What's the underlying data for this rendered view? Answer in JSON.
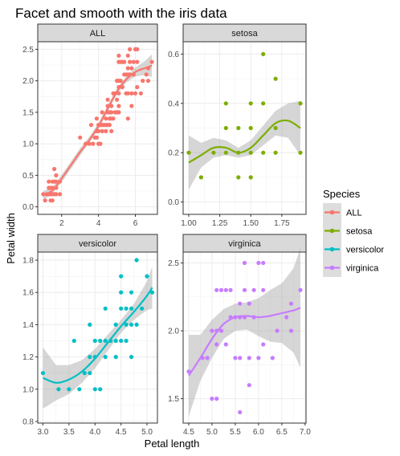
{
  "chart_data": {
    "type": "scatter",
    "title": "Facet and smooth with the iris data",
    "xlabel": "Petal length",
    "ylabel": "Petal width",
    "legend": {
      "title": "Species",
      "placement": "right",
      "entries": [
        {
          "name": "ALL",
          "color": "#F8766D"
        },
        {
          "name": "setosa",
          "color": "#7CAE00"
        },
        {
          "name": "versicolor",
          "color": "#00BFC4"
        },
        {
          "name": "virginica",
          "color": "#C77CFF"
        }
      ]
    },
    "grid": true,
    "smooth": "loess with confidence band",
    "facets": [
      {
        "label": "ALL",
        "color": "#F8766D",
        "xlim": [
          0.7,
          7.2
        ],
        "ylim": [
          -0.12,
          2.62
        ],
        "xticks": [
          2,
          4,
          6
        ],
        "yticks": [
          0.0,
          0.5,
          1.0,
          1.5,
          2.0,
          2.5
        ],
        "points": [
          [
            1.0,
            0.2
          ],
          [
            1.1,
            0.1
          ],
          [
            1.2,
            0.2
          ],
          [
            1.3,
            0.2
          ],
          [
            1.3,
            0.3
          ],
          [
            1.3,
            0.4
          ],
          [
            1.4,
            0.1
          ],
          [
            1.4,
            0.2
          ],
          [
            1.4,
            0.3
          ],
          [
            1.5,
            0.1
          ],
          [
            1.5,
            0.2
          ],
          [
            1.5,
            0.3
          ],
          [
            1.5,
            0.4
          ],
          [
            1.6,
            0.2
          ],
          [
            1.6,
            0.4
          ],
          [
            1.6,
            0.6
          ],
          [
            1.7,
            0.2
          ],
          [
            1.7,
            0.3
          ],
          [
            1.7,
            0.4
          ],
          [
            1.7,
            0.5
          ],
          [
            1.9,
            0.2
          ],
          [
            1.9,
            0.4
          ],
          [
            3.0,
            1.1
          ],
          [
            3.3,
            1.0
          ],
          [
            3.5,
            1.0
          ],
          [
            3.6,
            1.3
          ],
          [
            3.7,
            1.0
          ],
          [
            3.8,
            1.1
          ],
          [
            3.9,
            1.1
          ],
          [
            3.9,
            1.2
          ],
          [
            3.9,
            1.4
          ],
          [
            4.0,
            1.0
          ],
          [
            4.0,
            1.2
          ],
          [
            4.0,
            1.3
          ],
          [
            4.1,
            1.0
          ],
          [
            4.1,
            1.3
          ],
          [
            4.2,
            1.2
          ],
          [
            4.2,
            1.3
          ],
          [
            4.2,
            1.5
          ],
          [
            4.3,
            1.3
          ],
          [
            4.4,
            1.2
          ],
          [
            4.4,
            1.3
          ],
          [
            4.4,
            1.4
          ],
          [
            4.5,
            1.3
          ],
          [
            4.5,
            1.5
          ],
          [
            4.5,
            1.6
          ],
          [
            4.5,
            1.7
          ],
          [
            4.6,
            1.3
          ],
          [
            4.6,
            1.4
          ],
          [
            4.6,
            1.5
          ],
          [
            4.7,
            1.2
          ],
          [
            4.7,
            1.4
          ],
          [
            4.7,
            1.5
          ],
          [
            4.7,
            1.6
          ],
          [
            4.8,
            1.4
          ],
          [
            4.8,
            1.8
          ],
          [
            4.9,
            1.5
          ],
          [
            4.9,
            1.8
          ],
          [
            5.0,
            1.5
          ],
          [
            5.0,
            1.7
          ],
          [
            5.0,
            2.0
          ],
          [
            5.1,
            1.5
          ],
          [
            5.1,
            1.6
          ],
          [
            5.1,
            1.8
          ],
          [
            5.1,
            1.9
          ],
          [
            5.1,
            2.0
          ],
          [
            5.1,
            2.3
          ],
          [
            5.1,
            2.4
          ],
          [
            5.2,
            2.0
          ],
          [
            5.2,
            2.3
          ],
          [
            5.3,
            1.9
          ],
          [
            5.3,
            2.3
          ],
          [
            5.4,
            2.1
          ],
          [
            5.4,
            2.3
          ],
          [
            5.5,
            1.8
          ],
          [
            5.5,
            2.1
          ],
          [
            5.6,
            1.4
          ],
          [
            5.6,
            1.8
          ],
          [
            5.6,
            2.1
          ],
          [
            5.6,
            2.2
          ],
          [
            5.6,
            2.4
          ],
          [
            5.7,
            2.1
          ],
          [
            5.7,
            2.3
          ],
          [
            5.7,
            2.5
          ],
          [
            5.8,
            1.6
          ],
          [
            5.8,
            1.8
          ],
          [
            5.8,
            2.2
          ],
          [
            5.9,
            2.1
          ],
          [
            5.9,
            2.3
          ],
          [
            6.0,
            1.8
          ],
          [
            6.0,
            2.5
          ],
          [
            6.1,
            1.9
          ],
          [
            6.1,
            2.3
          ],
          [
            6.1,
            2.5
          ],
          [
            6.3,
            1.8
          ],
          [
            6.4,
            2.0
          ],
          [
            6.6,
            2.1
          ],
          [
            6.7,
            2.0
          ],
          [
            6.7,
            2.2
          ],
          [
            6.9,
            2.3
          ]
        ],
        "smooth": {
          "x": [
            1.0,
            1.5,
            2.0,
            2.5,
            3.0,
            3.5,
            4.0,
            4.5,
            5.0,
            5.5,
            6.0,
            6.5,
            6.9
          ],
          "y": [
            0.18,
            0.26,
            0.45,
            0.66,
            0.87,
            1.06,
            1.28,
            1.56,
            1.83,
            2.02,
            2.14,
            2.2,
            2.24
          ],
          "lower": [
            0.11,
            0.21,
            0.39,
            0.6,
            0.81,
            1.01,
            1.23,
            1.51,
            1.78,
            1.97,
            2.07,
            2.09,
            2.06
          ],
          "upper": [
            0.25,
            0.31,
            0.51,
            0.72,
            0.93,
            1.11,
            1.33,
            1.61,
            1.88,
            2.07,
            2.21,
            2.31,
            2.42
          ]
        }
      },
      {
        "label": "setosa",
        "color": "#7CAE00",
        "xlim": [
          0.955,
          1.945
        ],
        "ylim": [
          -0.05,
          0.65
        ],
        "xticks": [
          1.0,
          1.25,
          1.5,
          1.75
        ],
        "yticks": [
          0.0,
          0.2,
          0.4,
          0.6
        ],
        "points": [
          [
            1.0,
            0.2
          ],
          [
            1.1,
            0.1
          ],
          [
            1.2,
            0.2
          ],
          [
            1.3,
            0.2
          ],
          [
            1.3,
            0.3
          ],
          [
            1.3,
            0.4
          ],
          [
            1.4,
            0.1
          ],
          [
            1.4,
            0.2
          ],
          [
            1.4,
            0.3
          ],
          [
            1.5,
            0.1
          ],
          [
            1.5,
            0.2
          ],
          [
            1.5,
            0.3
          ],
          [
            1.5,
            0.4
          ],
          [
            1.6,
            0.2
          ],
          [
            1.6,
            0.4
          ],
          [
            1.6,
            0.6
          ],
          [
            1.7,
            0.2
          ],
          [
            1.7,
            0.3
          ],
          [
            1.7,
            0.5
          ],
          [
            1.9,
            0.2
          ],
          [
            1.9,
            0.4
          ]
        ],
        "smooth": {
          "x": [
            1.0,
            1.1,
            1.2,
            1.3,
            1.4,
            1.5,
            1.6,
            1.7,
            1.8,
            1.9
          ],
          "y": [
            0.16,
            0.19,
            0.22,
            0.22,
            0.2,
            0.22,
            0.27,
            0.32,
            0.33,
            0.3
          ],
          "lower": [
            0.05,
            0.14,
            0.18,
            0.19,
            0.18,
            0.19,
            0.23,
            0.27,
            0.26,
            0.19
          ],
          "upper": [
            0.27,
            0.24,
            0.26,
            0.25,
            0.22,
            0.25,
            0.31,
            0.37,
            0.4,
            0.41
          ]
        }
      },
      {
        "label": "versicolor",
        "color": "#00BFC4",
        "xlim": [
          2.9,
          5.2
        ],
        "ylim": [
          0.79,
          1.85
        ],
        "xticks": [
          3.0,
          3.5,
          4.0,
          4.5,
          5.0
        ],
        "yticks": [
          0.8,
          1.0,
          1.2,
          1.4,
          1.6,
          1.8
        ],
        "points": [
          [
            3.0,
            1.1
          ],
          [
            3.3,
            1.0
          ],
          [
            3.5,
            1.0
          ],
          [
            3.6,
            1.3
          ],
          [
            3.7,
            1.0
          ],
          [
            3.8,
            1.1
          ],
          [
            3.9,
            1.1
          ],
          [
            3.9,
            1.2
          ],
          [
            3.9,
            1.4
          ],
          [
            4.0,
            1.0
          ],
          [
            4.0,
            1.2
          ],
          [
            4.0,
            1.3
          ],
          [
            4.1,
            1.0
          ],
          [
            4.1,
            1.3
          ],
          [
            4.2,
            1.2
          ],
          [
            4.2,
            1.3
          ],
          [
            4.2,
            1.5
          ],
          [
            4.3,
            1.3
          ],
          [
            4.4,
            1.2
          ],
          [
            4.4,
            1.3
          ],
          [
            4.4,
            1.4
          ],
          [
            4.5,
            1.3
          ],
          [
            4.5,
            1.5
          ],
          [
            4.5,
            1.6
          ],
          [
            4.5,
            1.7
          ],
          [
            4.6,
            1.3
          ],
          [
            4.6,
            1.4
          ],
          [
            4.6,
            1.5
          ],
          [
            4.7,
            1.2
          ],
          [
            4.7,
            1.4
          ],
          [
            4.7,
            1.5
          ],
          [
            4.7,
            1.6
          ],
          [
            4.8,
            1.4
          ],
          [
            4.8,
            1.8
          ],
          [
            4.9,
            1.5
          ],
          [
            5.0,
            1.7
          ],
          [
            5.1,
            1.6
          ]
        ],
        "smooth": {
          "x": [
            3.0,
            3.25,
            3.5,
            3.75,
            4.0,
            4.25,
            4.5,
            4.75,
            5.0,
            5.1
          ],
          "y": [
            1.07,
            1.04,
            1.06,
            1.11,
            1.19,
            1.29,
            1.39,
            1.48,
            1.58,
            1.63
          ],
          "lower": [
            0.88,
            0.93,
            0.97,
            1.04,
            1.13,
            1.24,
            1.35,
            1.43,
            1.49,
            1.5
          ],
          "upper": [
            1.26,
            1.15,
            1.15,
            1.18,
            1.25,
            1.34,
            1.43,
            1.53,
            1.67,
            1.76
          ]
        }
      },
      {
        "label": "virginica",
        "color": "#C77CFF",
        "xlim": [
          4.38,
          7.02
        ],
        "ylim": [
          1.32,
          2.58
        ],
        "xticks": [
          4.5,
          5.0,
          5.5,
          6.0,
          6.5,
          7.0
        ],
        "yticks": [
          1.5,
          2.0,
          2.5
        ],
        "points": [
          [
            4.5,
            1.7
          ],
          [
            4.8,
            1.8
          ],
          [
            4.9,
            1.8
          ],
          [
            5.0,
            1.5
          ],
          [
            5.0,
            2.0
          ],
          [
            5.1,
            1.5
          ],
          [
            5.1,
            1.9
          ],
          [
            5.1,
            2.0
          ],
          [
            5.1,
            2.3
          ],
          [
            5.2,
            2.0
          ],
          [
            5.2,
            2.3
          ],
          [
            5.3,
            1.9
          ],
          [
            5.3,
            2.3
          ],
          [
            5.4,
            2.1
          ],
          [
            5.4,
            2.3
          ],
          [
            5.5,
            1.8
          ],
          [
            5.5,
            2.1
          ],
          [
            5.6,
            1.4
          ],
          [
            5.6,
            1.8
          ],
          [
            5.6,
            2.1
          ],
          [
            5.6,
            2.2
          ],
          [
            5.7,
            2.1
          ],
          [
            5.7,
            2.3
          ],
          [
            5.7,
            2.5
          ],
          [
            5.8,
            1.6
          ],
          [
            5.8,
            1.8
          ],
          [
            5.8,
            2.2
          ],
          [
            5.9,
            2.1
          ],
          [
            5.9,
            2.3
          ],
          [
            6.0,
            1.8
          ],
          [
            6.0,
            2.5
          ],
          [
            6.1,
            1.9
          ],
          [
            6.1,
            2.3
          ],
          [
            6.1,
            2.5
          ],
          [
            6.3,
            1.8
          ],
          [
            6.4,
            2.0
          ],
          [
            6.6,
            2.1
          ],
          [
            6.7,
            2.0
          ],
          [
            6.7,
            2.2
          ],
          [
            6.9,
            2.3
          ]
        ],
        "smooth": {
          "x": [
            4.5,
            4.75,
            5.0,
            5.25,
            5.5,
            5.75,
            6.0,
            6.25,
            6.5,
            6.75,
            6.9
          ],
          "y": [
            1.67,
            1.8,
            1.94,
            2.05,
            2.1,
            2.11,
            2.1,
            2.11,
            2.13,
            2.15,
            2.17
          ],
          "lower": [
            1.37,
            1.63,
            1.8,
            1.94,
            2.0,
            2.01,
            1.96,
            1.92,
            1.91,
            1.84,
            1.73
          ],
          "upper": [
            1.97,
            1.97,
            2.08,
            2.16,
            2.2,
            2.21,
            2.24,
            2.3,
            2.35,
            2.46,
            2.61
          ]
        }
      }
    ]
  }
}
